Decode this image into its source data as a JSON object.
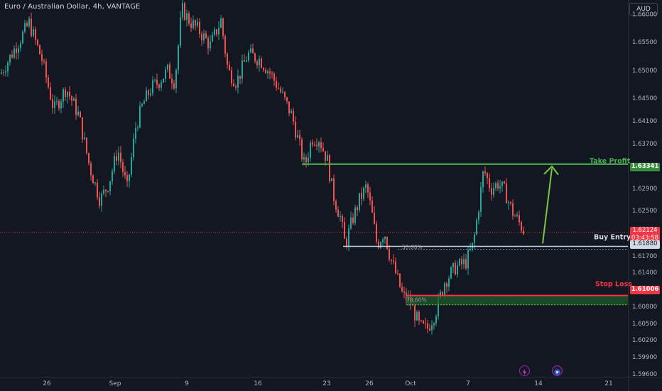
{
  "header": {
    "title": "Euro / Australian Dollar, 4h, VANTAGE",
    "currency": "AUD"
  },
  "colors": {
    "background": "#131722",
    "up": "#26a69a",
    "down": "#ef5350",
    "take_profit": "#4caf50",
    "stop_loss": "#f23645",
    "entry": "#c8d8ea",
    "arrow": "#7bc642"
  },
  "chart_data": {
    "type": "candlestick",
    "title": "Euro / Australian Dollar, 4h, VANTAGE",
    "y_ticks": [
      "1.66000",
      "1.65500",
      "1.65000",
      "1.64500",
      "1.64100",
      "1.63700",
      "1.62900",
      "1.62500",
      "1.61700",
      "1.61400",
      "1.60800",
      "1.60500",
      "1.60200",
      "1.59900",
      "1.59600"
    ],
    "x_ticks": [
      "26",
      "Sep",
      "9",
      "16",
      "23",
      "26",
      "Oct",
      "7",
      "14",
      "21"
    ],
    "ylim": [
      1.5956,
      1.6626
    ],
    "path_points": [
      [
        0,
        1.6495
      ],
      [
        20,
        1.654
      ],
      [
        40,
        1.6585
      ],
      [
        58,
        1.652
      ],
      [
        75,
        1.643
      ],
      [
        92,
        1.647
      ],
      [
        110,
        1.642
      ],
      [
        125,
        1.633
      ],
      [
        140,
        1.627
      ],
      [
        152,
        1.63
      ],
      [
        165,
        1.636
      ],
      [
        178,
        1.629
      ],
      [
        190,
        1.64
      ],
      [
        200,
        1.644
      ],
      [
        212,
        1.647
      ],
      [
        222,
        1.648
      ],
      [
        235,
        1.65
      ],
      [
        245,
        1.648
      ],
      [
        255,
        1.661
      ],
      [
        265,
        1.659
      ],
      [
        280,
        1.657
      ],
      [
        295,
        1.6545
      ],
      [
        310,
        1.659
      ],
      [
        320,
        1.65
      ],
      [
        332,
        1.648
      ],
      [
        348,
        1.653
      ],
      [
        365,
        1.652
      ],
      [
        380,
        1.6495
      ],
      [
        395,
        1.646
      ],
      [
        410,
        1.642
      ],
      [
        420,
        1.637
      ],
      [
        428,
        1.633
      ],
      [
        438,
        1.638
      ],
      [
        448,
        1.638
      ],
      [
        460,
        1.634
      ],
      [
        468,
        1.628
      ],
      [
        478,
        1.624
      ],
      [
        485,
        1.619
      ],
      [
        495,
        1.6235
      ],
      [
        505,
        1.627
      ],
      [
        515,
        1.6295
      ],
      [
        522,
        1.625
      ],
      [
        530,
        1.619
      ],
      [
        540,
        1.6215
      ],
      [
        548,
        1.617
      ],
      [
        556,
        1.614
      ],
      [
        566,
        1.61
      ],
      [
        576,
        1.609
      ],
      [
        590,
        1.6045
      ],
      [
        600,
        1.604
      ],
      [
        612,
        1.607
      ],
      [
        625,
        1.6125
      ],
      [
        640,
        1.615
      ],
      [
        655,
        1.616
      ],
      [
        665,
        1.619
      ],
      [
        672,
        1.625
      ],
      [
        680,
        1.6325
      ],
      [
        690,
        1.629
      ],
      [
        700,
        1.63
      ],
      [
        710,
        1.6285
      ],
      [
        720,
        1.625
      ],
      [
        730,
        1.623
      ],
      [
        738,
        1.6212
      ]
    ],
    "levels": {
      "take_profit": {
        "label": "Take Profit",
        "price": 1.63341,
        "price_label": "1.63341"
      },
      "buy_entry": {
        "label": "Buy Entry",
        "price": 1.6188,
        "price_label": "1.61880"
      },
      "stop_loss": {
        "label": "Stop Loss",
        "price": 1.61006,
        "price_label": "1.61006"
      },
      "zone_bottom": 1.6084,
      "current": {
        "price": 1.62124,
        "price_label": "1.62124",
        "countdown": "03:43:58"
      }
    },
    "fib_labels": [
      "50.00%",
      "78.60%"
    ],
    "legend": "none",
    "grid": false
  }
}
